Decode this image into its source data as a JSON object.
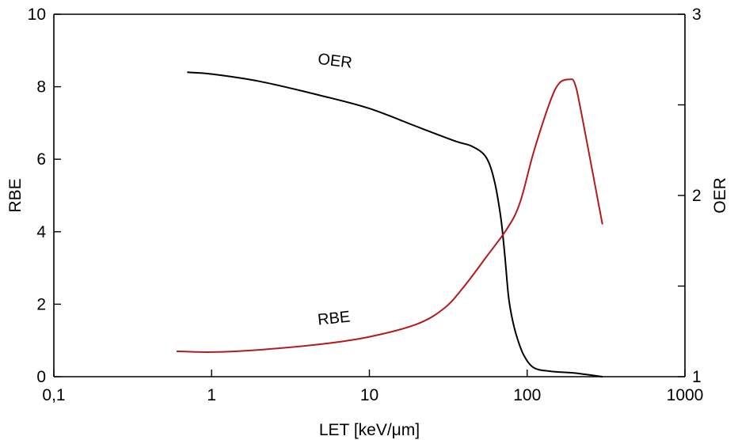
{
  "chart_data": {
    "type": "line",
    "xlabel": "LET [keV/μm]",
    "ylabel": "RBE",
    "y2label": "OER",
    "xscale": "log",
    "xlim": [
      0.1,
      1000
    ],
    "ylim": [
      0,
      10
    ],
    "y2lim": [
      1,
      3
    ],
    "grid": false,
    "x_ticks": [
      {
        "value": 0.1,
        "label": "0,1"
      },
      {
        "value": 1,
        "label": "1"
      },
      {
        "value": 10,
        "label": "10"
      },
      {
        "value": 100,
        "label": "100"
      },
      {
        "value": 1000,
        "label": "1000"
      }
    ],
    "y_ticks": [
      {
        "value": 0,
        "label": "0"
      },
      {
        "value": 2,
        "label": "2"
      },
      {
        "value": 4,
        "label": "4"
      },
      {
        "value": 6,
        "label": "6"
      },
      {
        "value": 8,
        "label": "8"
      },
      {
        "value": 10,
        "label": "10"
      }
    ],
    "y2_ticks": [
      {
        "value": 1,
        "label": "1"
      },
      {
        "value": 1.5,
        "label": ""
      },
      {
        "value": 2,
        "label": "2"
      },
      {
        "value": 2.5,
        "label": ""
      },
      {
        "value": 3,
        "label": "3"
      }
    ],
    "series": [
      {
        "name": "OER",
        "axis": "right",
        "color": "#000000",
        "label": {
          "text": "OER",
          "x": 6,
          "y": 2.68
        },
        "points": [
          [
            0.7,
            2.68
          ],
          [
            1,
            2.67
          ],
          [
            2,
            2.63
          ],
          [
            5,
            2.55
          ],
          [
            10,
            2.48
          ],
          [
            20,
            2.38
          ],
          [
            35,
            2.3
          ],
          [
            45,
            2.27
          ],
          [
            55,
            2.21
          ],
          [
            62,
            2.08
          ],
          [
            68,
            1.88
          ],
          [
            72,
            1.68
          ],
          [
            76,
            1.45
          ],
          [
            80,
            1.33
          ],
          [
            86,
            1.22
          ],
          [
            95,
            1.12
          ],
          [
            110,
            1.05
          ],
          [
            140,
            1.03
          ],
          [
            200,
            1.02
          ],
          [
            300,
            1.0
          ]
        ]
      },
      {
        "name": "RBE",
        "axis": "left",
        "color": "#b31b1b",
        "label": {
          "text": "RBE",
          "x": 6,
          "y": 1.3
        },
        "points": [
          [
            0.6,
            0.7
          ],
          [
            1,
            0.68
          ],
          [
            2,
            0.74
          ],
          [
            5,
            0.9
          ],
          [
            10,
            1.1
          ],
          [
            20,
            1.45
          ],
          [
            30,
            1.9
          ],
          [
            40,
            2.5
          ],
          [
            55,
            3.3
          ],
          [
            75,
            4.1
          ],
          [
            90,
            4.8
          ],
          [
            110,
            6.2
          ],
          [
            140,
            7.6
          ],
          [
            160,
            8.1
          ],
          [
            185,
            8.2
          ],
          [
            200,
            8.1
          ],
          [
            220,
            7.3
          ],
          [
            300,
            4.2
          ]
        ]
      }
    ]
  }
}
